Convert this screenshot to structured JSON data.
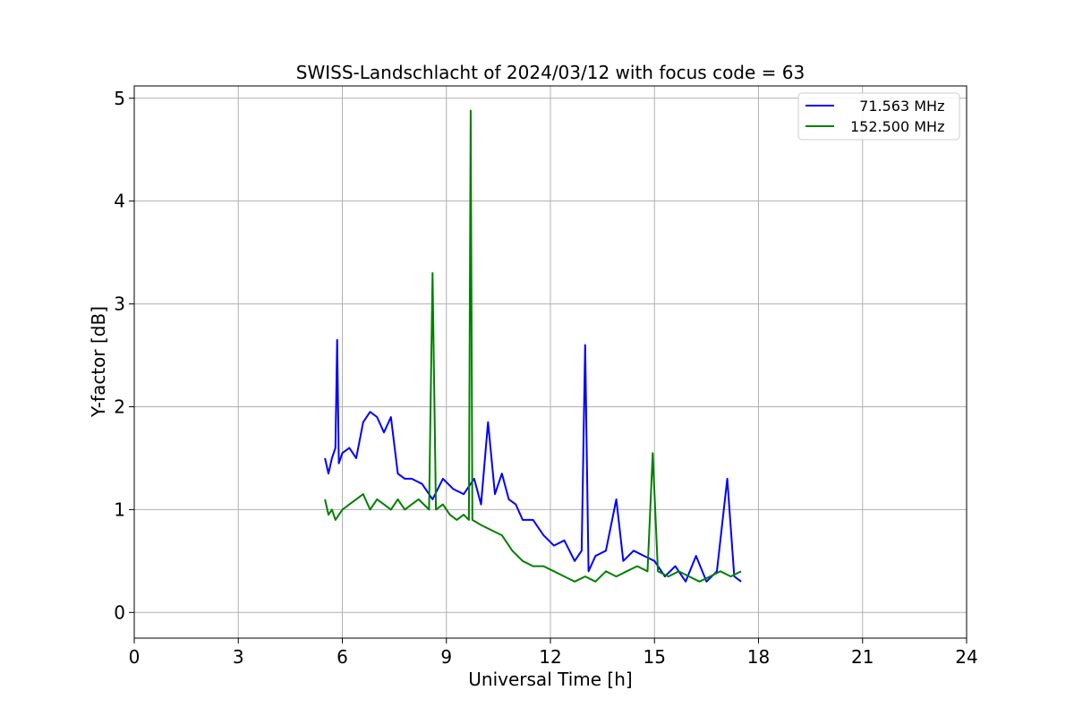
{
  "chart_data": {
    "type": "line",
    "title": "SWISS-Landschlacht of 2024/03/12 with focus code = 63",
    "xlabel": "Universal Time [h]",
    "ylabel": "Y-factor [dB]",
    "xlim": [
      0,
      24
    ],
    "ylim": [
      -0.25,
      5.12
    ],
    "xticks": [
      0,
      3,
      6,
      9,
      12,
      15,
      18,
      21,
      24
    ],
    "yticks": [
      0,
      1,
      2,
      3,
      4,
      5
    ],
    "grid": true,
    "legend_position": "top-right",
    "series": [
      {
        "name": "  71.563 MHz",
        "color": "#0000ff",
        "x": [
          5.5,
          5.6,
          5.7,
          5.8,
          5.85,
          5.9,
          6.0,
          6.2,
          6.4,
          6.6,
          6.8,
          7.0,
          7.2,
          7.4,
          7.6,
          7.8,
          8.0,
          8.3,
          8.6,
          8.9,
          9.2,
          9.5,
          9.8,
          10.0,
          10.2,
          10.4,
          10.6,
          10.8,
          11.0,
          11.2,
          11.5,
          11.8,
          12.1,
          12.4,
          12.7,
          12.9,
          13.0,
          13.1,
          13.3,
          13.6,
          13.9,
          14.1,
          14.4,
          14.7,
          15.0,
          15.3,
          15.6,
          15.9,
          16.2,
          16.5,
          16.8,
          17.1,
          17.3,
          17.5
        ],
        "y": [
          1.5,
          1.35,
          1.5,
          1.6,
          2.65,
          1.45,
          1.55,
          1.6,
          1.5,
          1.85,
          1.95,
          1.9,
          1.75,
          1.9,
          1.35,
          1.3,
          1.3,
          1.25,
          1.1,
          1.3,
          1.2,
          1.15,
          1.3,
          1.05,
          1.85,
          1.15,
          1.35,
          1.1,
          1.05,
          0.9,
          0.9,
          0.75,
          0.65,
          0.7,
          0.5,
          0.6,
          2.6,
          0.4,
          0.55,
          0.6,
          1.1,
          0.5,
          0.6,
          0.55,
          0.5,
          0.35,
          0.45,
          0.3,
          0.55,
          0.3,
          0.4,
          1.3,
          0.35,
          0.3
        ]
      },
      {
        "name": "152.500 MHz",
        "color": "#008000",
        "x": [
          5.5,
          5.6,
          5.7,
          5.8,
          6.0,
          6.2,
          6.4,
          6.6,
          6.8,
          7.0,
          7.2,
          7.4,
          7.6,
          7.8,
          8.0,
          8.2,
          8.5,
          8.6,
          8.7,
          8.9,
          9.1,
          9.3,
          9.5,
          9.65,
          9.7,
          9.75,
          10.0,
          10.3,
          10.6,
          10.9,
          11.2,
          11.5,
          11.8,
          12.1,
          12.4,
          12.7,
          13.0,
          13.3,
          13.6,
          13.9,
          14.2,
          14.5,
          14.8,
          14.95,
          15.1,
          15.4,
          15.7,
          16.0,
          16.3,
          16.6,
          16.9,
          17.2,
          17.5
        ],
        "y": [
          1.1,
          0.95,
          1.0,
          0.9,
          1.0,
          1.05,
          1.1,
          1.15,
          1.0,
          1.1,
          1.05,
          1.0,
          1.1,
          1.0,
          1.05,
          1.1,
          1.0,
          3.3,
          1.0,
          1.05,
          0.95,
          0.9,
          0.95,
          0.9,
          4.88,
          0.9,
          0.85,
          0.8,
          0.75,
          0.6,
          0.5,
          0.45,
          0.45,
          0.4,
          0.35,
          0.3,
          0.35,
          0.3,
          0.4,
          0.35,
          0.4,
          0.45,
          0.4,
          1.55,
          0.4,
          0.35,
          0.4,
          0.35,
          0.3,
          0.35,
          0.4,
          0.35,
          0.4
        ]
      }
    ]
  }
}
